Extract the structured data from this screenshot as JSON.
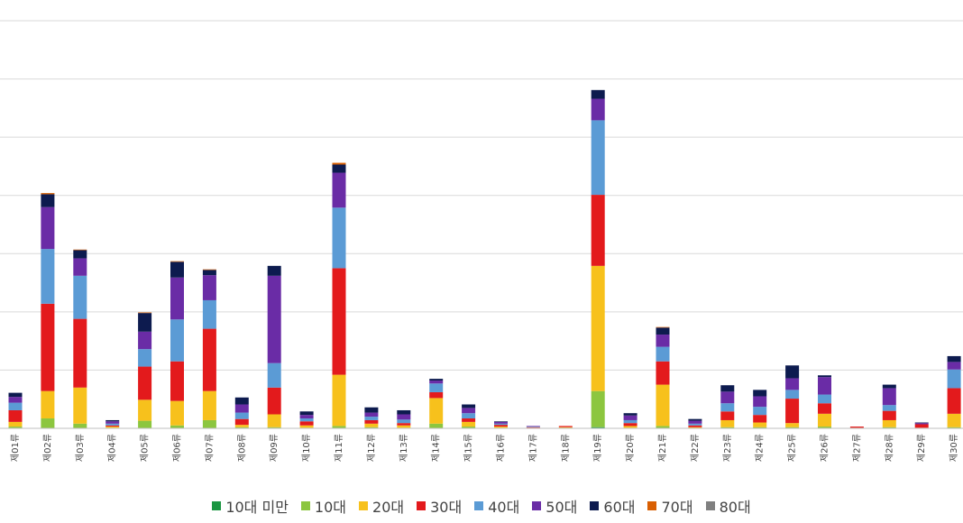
{
  "chart_data": {
    "type": "bar",
    "stacked": true,
    "grid": true,
    "legend_position": "bottom",
    "ylim": [
      0,
      700
    ],
    "gridline_step": 100,
    "categories": [
      "제01류",
      "제02류",
      "제03류",
      "제04류",
      "제05류",
      "제06류",
      "제07류",
      "제08류",
      "제09류",
      "제10류",
      "제11류",
      "제12류",
      "제13류",
      "제14류",
      "제15류",
      "제16류",
      "제17류",
      "제18류",
      "제19류",
      "제20류",
      "제21류",
      "제22류",
      "제23류",
      "제24류",
      "제25류",
      "제26류",
      "제27류",
      "제28류",
      "제29류",
      "제30류"
    ],
    "series": [
      {
        "name": "10대 미만",
        "color": "#1a9641",
        "values": [
          0,
          0,
          0,
          0,
          0,
          0,
          0,
          0,
          0,
          0,
          0,
          0,
          0,
          0,
          0,
          0,
          0,
          0,
          2,
          0,
          0,
          0,
          0,
          0,
          0,
          0,
          0,
          0,
          0,
          0
        ]
      },
      {
        "name": "10대",
        "color": "#8cc63f",
        "values": [
          3,
          17,
          8,
          1,
          13,
          5,
          14,
          2,
          2,
          1,
          4,
          2,
          1,
          8,
          3,
          1,
          0,
          1,
          62,
          1,
          4,
          0,
          2,
          2,
          2,
          3,
          0,
          2,
          0,
          2
        ]
      },
      {
        "name": "20대",
        "color": "#f7c11c",
        "values": [
          8,
          47,
          62,
          2,
          36,
          42,
          50,
          4,
          22,
          4,
          88,
          6,
          4,
          44,
          8,
          2,
          1,
          1,
          215,
          3,
          71,
          2,
          12,
          8,
          7,
          22,
          1,
          12,
          1,
          23
        ]
      },
      {
        "name": "30대",
        "color": "#e31a1c",
        "values": [
          20,
          150,
          118,
          2,
          57,
          68,
          107,
          10,
          46,
          7,
          183,
          6,
          4,
          10,
          6,
          3,
          1,
          2,
          122,
          5,
          40,
          3,
          15,
          13,
          42,
          18,
          2,
          16,
          6,
          44
        ]
      },
      {
        "name": "40대",
        "color": "#5b9bd5",
        "values": [
          13,
          94,
          74,
          3,
          30,
          72,
          49,
          11,
          42,
          5,
          104,
          6,
          6,
          15,
          9,
          2,
          1,
          0,
          128,
          5,
          25,
          3,
          14,
          14,
          15,
          15,
          0,
          10,
          0,
          32
        ]
      },
      {
        "name": "50대",
        "color": "#6a2ca6",
        "values": [
          10,
          72,
          30,
          4,
          30,
          72,
          43,
          14,
          150,
          6,
          60,
          7,
          9,
          5,
          9,
          3,
          1,
          0,
          37,
          8,
          21,
          5,
          20,
          18,
          20,
          30,
          0,
          29,
          2,
          13
        ]
      },
      {
        "name": "60대",
        "color": "#0d1b4f",
        "values": [
          7,
          22,
          14,
          2,
          32,
          27,
          9,
          12,
          17,
          6,
          14,
          9,
          7,
          3,
          6,
          1,
          0,
          0,
          15,
          4,
          12,
          3,
          11,
          11,
          22,
          3,
          0,
          6,
          1,
          10
        ]
      },
      {
        "name": "70대",
        "color": "#d95f02",
        "values": [
          0,
          2,
          1,
          0,
          1,
          1,
          1,
          0,
          0,
          0,
          3,
          0,
          0,
          0,
          0,
          0,
          0,
          0,
          0,
          0,
          1,
          0,
          0,
          0,
          0,
          0,
          0,
          0,
          0,
          0
        ]
      },
      {
        "name": "80대",
        "color": "#808080",
        "values": [
          0,
          0,
          0,
          0,
          0,
          0,
          0,
          0,
          0,
          0,
          0,
          0,
          0,
          0,
          0,
          0,
          0,
          0,
          0,
          0,
          0,
          0,
          0,
          0,
          0,
          0,
          0,
          0,
          0,
          0
        ]
      }
    ]
  }
}
